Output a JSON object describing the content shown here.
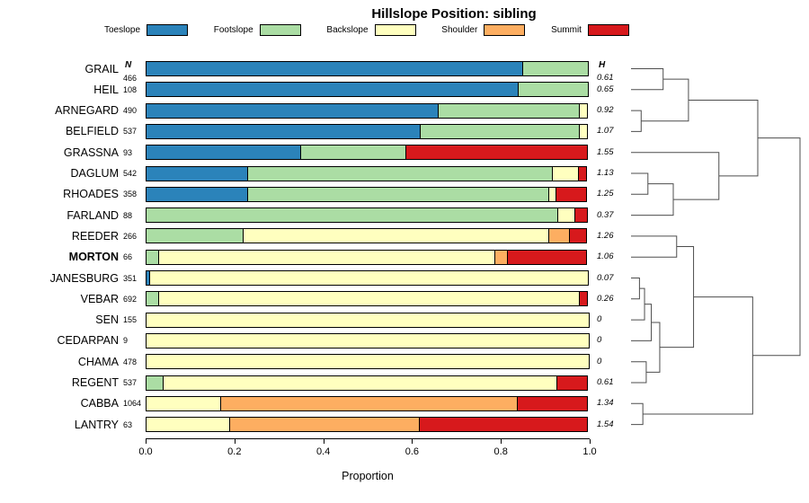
{
  "columns": {
    "n": "N",
    "h": "H"
  },
  "legend": {
    "items": [
      {
        "label": "Toeslope",
        "color": "#2B83BA"
      },
      {
        "label": "Footslope",
        "color": "#ABDDA4"
      },
      {
        "label": "Backslope",
        "color": "#FFFFBF"
      },
      {
        "label": "Shoulder",
        "color": "#FDAE61"
      },
      {
        "label": "Summit",
        "color": "#D7191C"
      }
    ]
  },
  "chart_data": {
    "type": "bar",
    "stacked": true,
    "orientation": "horizontal",
    "title": "Hillslope Position: sibling",
    "xlabel": "Proportion",
    "xlim": [
      0,
      1
    ],
    "x_tick_labels": [
      "0.0",
      "0.2",
      "0.4",
      "0.6",
      "0.8",
      "1.0"
    ],
    "grid": false,
    "bold_category": "MORTON",
    "categories": [
      "GRAIL",
      "HEIL",
      "ARNEGARD",
      "BELFIELD",
      "GRASSNA",
      "DAGLUM",
      "RHOADES",
      "FARLAND",
      "REEDER",
      "MORTON",
      "JANESBURG",
      "VEBAR",
      "SEN",
      "CEDARPAN",
      "CHAMA",
      "REGENT",
      "CABBA",
      "LANTRY"
    ],
    "n": [
      "466",
      "108",
      "490",
      "537",
      "93",
      "542",
      "358",
      "88",
      "266",
      "66",
      "351",
      "692",
      "155",
      "9",
      "478",
      "537",
      "1064",
      "63"
    ],
    "h": [
      "0.61",
      "0.65",
      "0.92",
      "1.07",
      "1.55",
      "1.13",
      "1.25",
      "0.37",
      "1.26",
      "1.06",
      "0.07",
      "0.26",
      "0",
      "0",
      "0",
      "0.61",
      "1.34",
      "1.54"
    ],
    "series": [
      {
        "name": "Toeslope",
        "color": "#2B83BA",
        "values": [
          0.85,
          0.84,
          0.66,
          0.62,
          0.35,
          0.23,
          0.23,
          0,
          0,
          0,
          0.01,
          0,
          0,
          0,
          0,
          0,
          0,
          0
        ]
      },
      {
        "name": "Footslope",
        "color": "#ABDDA4",
        "values": [
          0.15,
          0.16,
          0.32,
          0.36,
          0.24,
          0.69,
          0.68,
          0.93,
          0.22,
          0.03,
          0,
          0.03,
          0,
          0,
          0,
          0.04,
          0,
          0
        ]
      },
      {
        "name": "Backslope",
        "color": "#FFFFBF",
        "values": [
          0,
          0,
          0.02,
          0.02,
          0,
          0.06,
          0.02,
          0.04,
          0.69,
          0.76,
          0.99,
          0.95,
          1,
          1,
          1,
          0.89,
          0.17,
          0.19
        ]
      },
      {
        "name": "Shoulder",
        "color": "#FDAE61",
        "values": [
          0,
          0,
          0,
          0,
          0,
          0,
          0,
          0,
          0.05,
          0.03,
          0,
          0,
          0,
          0,
          0,
          0,
          0.67,
          0.43
        ]
      },
      {
        "name": "Summit",
        "color": "#D7191C",
        "values": [
          0,
          0,
          0,
          0,
          0.41,
          0.02,
          0.07,
          0.03,
          0.04,
          0.18,
          0,
          0.02,
          0,
          0,
          0,
          0.07,
          0.16,
          0.38
        ]
      }
    ]
  },
  "dendrogram": {
    "note": "hierarchical clustering of series by hillslope-position proportions, heights relative to root = 1",
    "merges": [
      [
        "L0",
        "L1",
        0.19
      ],
      [
        "L2",
        "L3",
        0.06
      ],
      [
        "M0",
        "M1",
        0.34
      ],
      [
        "L5",
        "L6",
        0.1
      ],
      [
        "M3",
        "L7",
        0.25
      ],
      [
        "L4",
        "M4",
        0.52
      ],
      [
        "M2",
        "M5",
        0.75
      ],
      [
        "L10",
        "L11",
        0.05
      ],
      [
        "M7",
        "L12",
        0.08
      ],
      [
        "M8",
        "L13",
        0.12
      ],
      [
        "L14",
        "L15",
        0.09
      ],
      [
        "M9",
        "M10",
        0.17
      ],
      [
        "L8",
        "L9",
        0.27
      ],
      [
        "M12",
        "M11",
        0.37
      ],
      [
        "L16",
        "L17",
        0.07
      ],
      [
        "M13",
        "M14",
        0.72
      ],
      [
        "M6",
        "M15",
        1.0
      ]
    ]
  }
}
